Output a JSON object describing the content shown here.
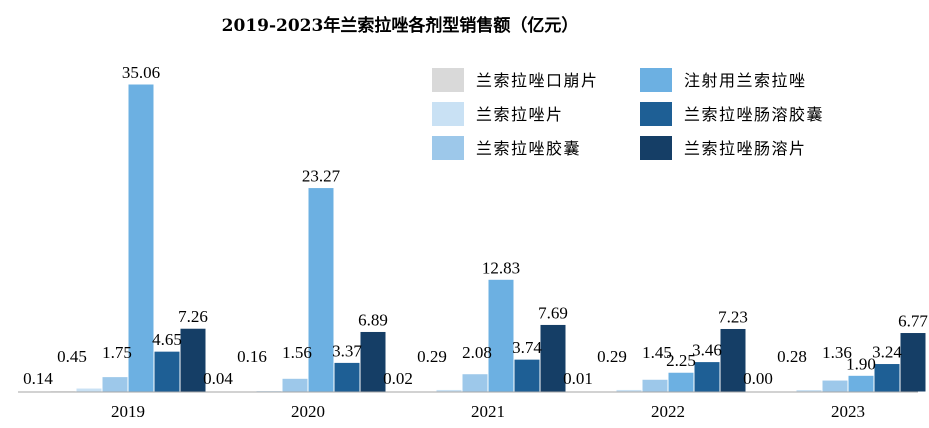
{
  "chart_data": {
    "type": "bar",
    "title": "2019-2023年兰索拉唑各剂型销售额（亿元）",
    "xlabel": "",
    "ylabel": "",
    "ylim": [
      0,
      36
    ],
    "grid": false,
    "legend_position": "top-right",
    "categories": [
      "2019",
      "2020",
      "2021",
      "2022",
      "2023"
    ],
    "series": [
      {
        "name": "兰索拉唑口崩片",
        "color": "#d9d9d9",
        "values": [
          0.14,
          0.04,
          0.02,
          0.01,
          0.0
        ],
        "labels": [
          "0.14",
          "0.04",
          "0.02",
          "0.01",
          "0.00"
        ]
      },
      {
        "name": "兰索拉唑片",
        "color": "#c9e1f4",
        "values": [
          0.45,
          0.16,
          0.29,
          0.29,
          0.28
        ],
        "labels": [
          "0.45",
          "0.16",
          "0.29",
          "0.29",
          "0.28"
        ]
      },
      {
        "name": "兰索拉唑胶囊",
        "color": "#9dc8ea",
        "values": [
          1.75,
          1.56,
          2.08,
          1.45,
          1.36
        ],
        "labels": [
          "1.75",
          "1.56",
          "2.08",
          "1.45",
          "1.36"
        ]
      },
      {
        "name": "注射用兰索拉唑",
        "color": "#6cb0e2",
        "values": [
          35.06,
          23.27,
          12.83,
          2.25,
          1.9
        ],
        "labels": [
          "35.06",
          "23.27",
          "12.83",
          "2.25",
          "1.90"
        ]
      },
      {
        "name": "兰索拉唑肠溶胶囊",
        "color": "#1e5f95",
        "values": [
          4.65,
          3.37,
          3.74,
          3.46,
          3.24
        ],
        "labels": [
          "4.65",
          "3.37",
          "3.74",
          "3.46",
          "3.24"
        ]
      },
      {
        "name": "兰索拉唑肠溶片",
        "color": "#153e66",
        "values": [
          7.26,
          6.89,
          7.69,
          7.23,
          6.77
        ],
        "labels": [
          "7.26",
          "6.89",
          "7.69",
          "7.23",
          "6.77"
        ]
      }
    ],
    "legend_order": [
      0,
      3,
      1,
      4,
      2,
      5
    ]
  }
}
